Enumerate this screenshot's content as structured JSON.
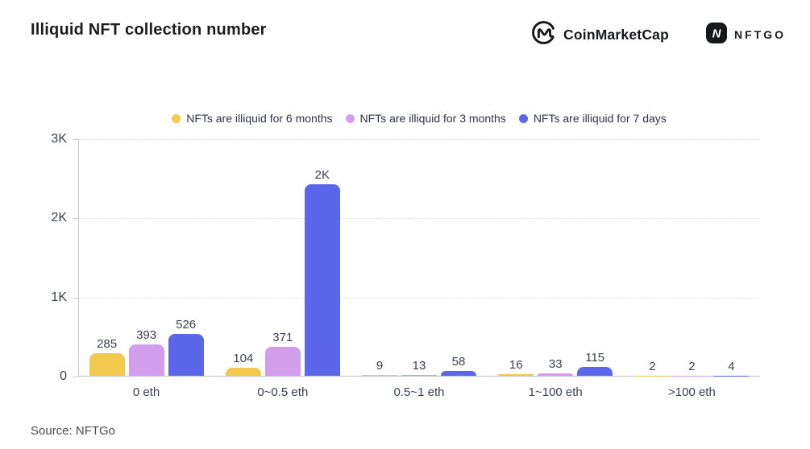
{
  "header": {
    "title": "Illiquid NFT collection number",
    "logos": {
      "coinmarketcap": {
        "label": "CoinMarketCap",
        "icon": "coinmarketcap-icon",
        "color": "#17181b"
      },
      "nftgo": {
        "label": "NFTGO",
        "icon": "nftgo-icon",
        "color": "#1a1b1e"
      }
    }
  },
  "footer": {
    "source": "Source: NFTGo"
  },
  "colors": {
    "series_yellow": "#F0C94D",
    "series_purple": "#D29EEB",
    "series_blue": "#5B66EB",
    "gridline": "#E2E2E7",
    "axis": "#C8CBD1",
    "text": "#3B4050"
  },
  "chart_data": {
    "type": "bar",
    "title": "Illiquid NFT collection number",
    "categories": [
      "0 eth",
      "0~0.5 eth",
      "0.5~1 eth",
      "1~100 eth",
      ">100 eth"
    ],
    "series": [
      {
        "name": "NFTs are illiquid for 6 months",
        "color": "#F0C94D",
        "values": [
          285,
          104,
          9,
          16,
          2
        ],
        "labels": [
          "285",
          "104",
          "9",
          "16",
          "2"
        ]
      },
      {
        "name": "NFTs are illiquid for 3 months",
        "color": "#D29EEB",
        "values": [
          393,
          371,
          13,
          33,
          2
        ],
        "labels": [
          "393",
          "371",
          "13",
          "33",
          "2"
        ]
      },
      {
        "name": "NFTs are illiquid for 7 days",
        "color": "#5B66EB",
        "values": [
          526,
          2420,
          58,
          115,
          4
        ],
        "labels": [
          "526",
          "2K",
          "58",
          "115",
          "4"
        ]
      }
    ],
    "ylabel": "",
    "xlabel": "",
    "ylim": [
      0,
      3000
    ],
    "yticks": [
      {
        "value": 0,
        "label": "0"
      },
      {
        "value": 1000,
        "label": "1K"
      },
      {
        "value": 2000,
        "label": "2K"
      },
      {
        "value": 3000,
        "label": "3K"
      }
    ],
    "grid": "horizontal-dashed",
    "legend_position": "top-center",
    "source": "Source: NFTGo"
  }
}
